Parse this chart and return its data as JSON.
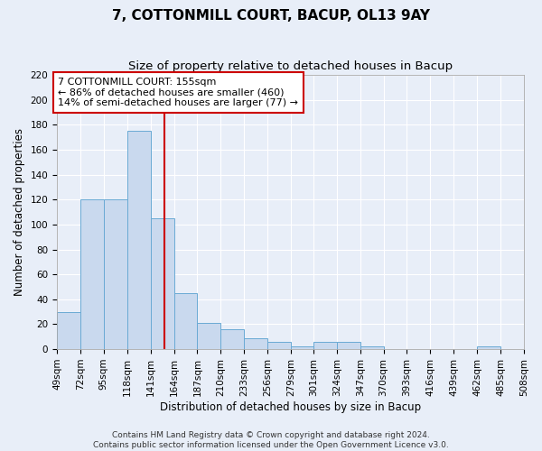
{
  "title": "7, COTTONMILL COURT, BACUP, OL13 9AY",
  "subtitle": "Size of property relative to detached houses in Bacup",
  "xlabel": "Distribution of detached houses by size in Bacup",
  "ylabel": "Number of detached properties",
  "bin_edges": [
    49,
    72,
    95,
    118,
    141,
    164,
    187,
    210,
    233,
    256,
    279,
    301,
    324,
    347,
    370,
    393,
    416,
    439,
    462,
    485,
    508
  ],
  "bar_heights": [
    30,
    120,
    120,
    175,
    105,
    45,
    21,
    16,
    9,
    6,
    2,
    6,
    6,
    2,
    0,
    0,
    0,
    0,
    2,
    0
  ],
  "bar_color": "#c9d9ee",
  "bar_edge_color": "#6aaad4",
  "red_line_x": 155,
  "annotation_lines": [
    "7 COTTONMILL COURT: 155sqm",
    "← 86% of detached houses are smaller (460)",
    "14% of semi-detached houses are larger (77) →"
  ],
  "annotation_box_color": "#ffffff",
  "annotation_box_edge": "#cc0000",
  "red_line_color": "#cc0000",
  "ylim": [
    0,
    220
  ],
  "yticks": [
    0,
    20,
    40,
    60,
    80,
    100,
    120,
    140,
    160,
    180,
    200,
    220
  ],
  "footer_lines": [
    "Contains HM Land Registry data © Crown copyright and database right 2024.",
    "Contains public sector information licensed under the Open Government Licence v3.0."
  ],
  "background_color": "#e8eef8",
  "plot_bg_color": "#e8eef8",
  "grid_color": "#ffffff",
  "title_fontsize": 11,
  "subtitle_fontsize": 9.5,
  "axis_label_fontsize": 8.5,
  "tick_fontsize": 7.5,
  "annotation_fontsize": 8,
  "footer_fontsize": 6.5
}
